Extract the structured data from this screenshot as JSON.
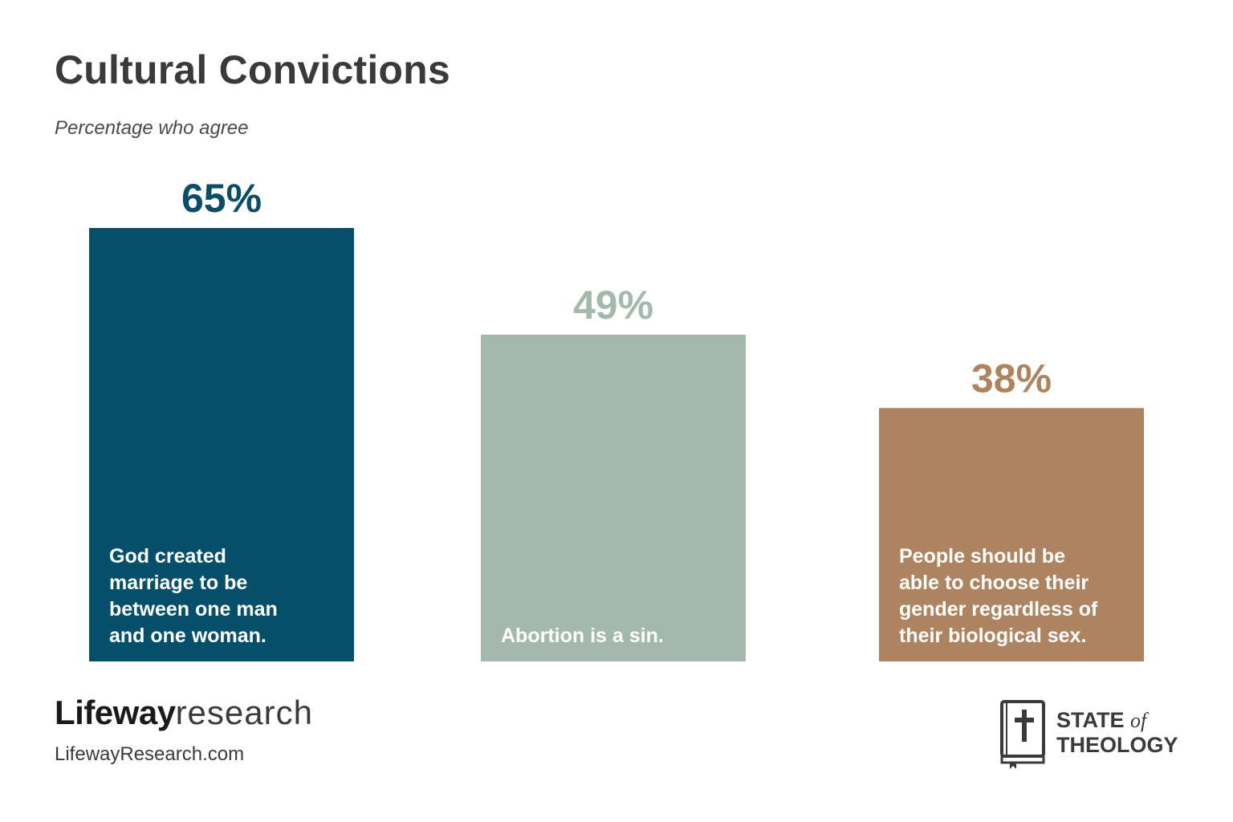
{
  "header": {
    "title": "Cultural Convictions",
    "subtitle": "Percentage who agree"
  },
  "chart_data": {
    "type": "bar",
    "title": "Cultural Convictions",
    "subtitle": "Percentage who agree",
    "ylim": [
      0,
      65
    ],
    "grid": false,
    "categories": [
      "God created marriage to be between one man and one woman.",
      "Abortion is a sin.",
      "People should be able to choose their gender regardless of their biological sex."
    ],
    "values": [
      65,
      49,
      38
    ],
    "value_labels": [
      "65%",
      "49%",
      "38%"
    ],
    "category_lines": [
      [
        "God created",
        "marriage to be",
        "between one man",
        "and one woman."
      ],
      [
        "Abortion is a sin."
      ],
      [
        "People should be",
        "able to choose their",
        "gender regardless of",
        "their biological sex."
      ]
    ],
    "colors": [
      "#064f6b",
      "#a3b9ad",
      "#ad845f"
    ],
    "label_colors": [
      "#0b4c66",
      "#a3b9ad",
      "#ad845f"
    ]
  },
  "footer": {
    "brand_bold": "Lifeway",
    "brand_light": "research",
    "url": "LifewayResearch.com",
    "logo_state": "STATE",
    "logo_of": "of",
    "logo_theology": "THEOLOGY"
  }
}
